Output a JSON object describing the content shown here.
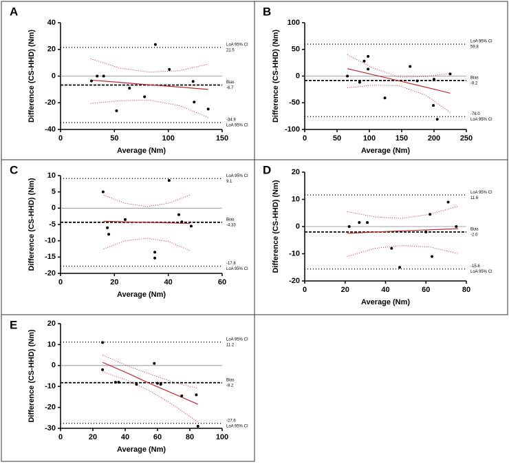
{
  "chart_data": [
    {
      "type": "scatter",
      "panel": "A",
      "ylabel": "Difference (CS-HHD) (Nm)",
      "xlabel": "Average (Nm)",
      "x": [
        28.7,
        34,
        40,
        52,
        64,
        78,
        88,
        101,
        123,
        124,
        137
      ],
      "values": [
        -3.6,
        0,
        0,
        -26,
        -9,
        -15.5,
        23.7,
        5,
        -4,
        -19.5,
        -24.7
      ],
      "xlim": [
        0,
        150
      ],
      "xticks": [
        0,
        50,
        100,
        150
      ],
      "ylim": [
        -40,
        40
      ],
      "yticks": [
        -40,
        -20,
        0,
        20,
        40
      ],
      "fit": {
        "x": [
          28,
          55,
          82,
          110,
          137
        ],
        "y": [
          -3,
          -4.7,
          -6.5,
          -8.2,
          -10
        ],
        "upper": [
          13,
          6,
          3,
          4,
          9
        ],
        "lower": [
          -20.5,
          -18.5,
          -18,
          -22,
          -31
        ]
      },
      "loa_label": "LoA 95% CI",
      "bias_label": "Bias",
      "loa_upper": 21.5,
      "bias": -6.7,
      "loa_lower": -34.9,
      "color": "#000000",
      "fit_color": "#c0262b"
    },
    {
      "type": "scatter",
      "panel": "B",
      "ylabel": "Difference (CS-HHD) (Nm)",
      "xlabel": "Average (Nm)",
      "x": [
        66,
        85,
        92,
        98,
        98,
        124,
        163,
        174,
        200,
        199,
        205,
        225
      ],
      "values": [
        0,
        -11.6,
        28,
        37,
        13,
        -41,
        18,
        -9,
        -6,
        -55,
        -81,
        4
      ],
      "xlim": [
        0,
        250
      ],
      "xticks": [
        0,
        50,
        100,
        150,
        200,
        250
      ],
      "ylim": [
        -100,
        100
      ],
      "yticks": [
        -100,
        -50,
        0,
        50,
        100
      ],
      "fit": {
        "x": [
          66,
          106,
          146,
          186,
          225
        ],
        "y": [
          14,
          2.5,
          -9,
          -20.5,
          -32
        ],
        "upper": [
          40,
          15,
          -2,
          -1,
          5
        ],
        "lower": [
          -22,
          -17,
          -18,
          -35,
          -68
        ]
      },
      "loa_label": "LoA 95% CI",
      "bias_label": "Bias",
      "loa_upper": 59.8,
      "bias": -8.2,
      "loa_lower": {
        "value": -76,
        "label": "-76.0"
      },
      "color": "#000000",
      "fit_color": "#c0262b"
    },
    {
      "type": "scatter",
      "panel": "C",
      "ylabel": "Difference (CS-HHD) (Nm)",
      "xlabel": "Average (Nm)",
      "x": [
        15.8,
        17.4,
        17.9,
        24,
        40.3,
        43.9,
        45,
        48.5,
        35,
        35
      ],
      "values": [
        5,
        -6,
        -8,
        -3.5,
        8.5,
        -2,
        -4.2,
        -5.5,
        -13.5,
        -15.3
      ],
      "xlim": [
        0,
        60
      ],
      "xticks": [
        0,
        20,
        40,
        60
      ],
      "ylim": [
        -20,
        10
      ],
      "yticks": [
        -20,
        -15,
        -10,
        -5,
        0,
        5,
        10
      ],
      "fit": {
        "x": [
          16,
          24,
          32,
          40,
          48
        ],
        "y": [
          -4,
          -4.2,
          -4.35,
          -4.5,
          -4.7
        ],
        "upper": [
          4,
          1.5,
          0.5,
          1.5,
          4
        ],
        "lower": [
          -12.5,
          -10,
          -9.2,
          -10.2,
          -13
        ]
      },
      "loa_label": "LoA 95% CI",
      "bias_label": "Bias",
      "loa_upper": 9.1,
      "bias": -4.33,
      "loa_lower": -17.8,
      "color": "#000000",
      "fit_color": "#c0262b"
    },
    {
      "type": "scatter",
      "panel": "D",
      "ylabel": "Difference (CS-HHD) (Nm)",
      "xlabel": "Average (Nm)",
      "x": [
        22,
        27,
        31,
        43,
        47,
        60,
        62,
        63,
        71,
        75
      ],
      "values": [
        0,
        1.5,
        1.5,
        -8,
        -15,
        -2,
        4.5,
        -11,
        9,
        0
      ],
      "xlim": [
        0,
        80
      ],
      "xticks": [
        0,
        20,
        40,
        60,
        80
      ],
      "ylim": [
        -20,
        20
      ],
      "yticks": [
        -20,
        -10,
        0,
        10,
        20
      ],
      "fit": {
        "x": [
          21,
          35,
          48,
          62,
          76
        ],
        "y": [
          -2.5,
          -2,
          -1.6,
          -1.2,
          -0.8
        ],
        "upper": [
          5.5,
          3.5,
          3,
          4.5,
          7.5
        ],
        "lower": [
          -11,
          -8,
          -7,
          -7.5,
          -10
        ]
      },
      "loa_label": "LoA 95% CI",
      "bias_label": "Bias",
      "loa_upper": 11.6,
      "bias": {
        "value": -2,
        "label": "-2.0"
      },
      "loa_lower": -15.6,
      "color": "#000000",
      "fit_color": "#c0262b"
    },
    {
      "type": "scatter",
      "panel": "E",
      "ylabel": "Difference (CS-HHD) (Nm)",
      "xlabel": "Average (Nm)",
      "x": [
        26,
        26,
        34,
        36,
        47,
        58,
        60,
        62,
        75,
        84,
        85
      ],
      "values": [
        11,
        -2,
        -8,
        -8,
        -9,
        1,
        -8.5,
        -9,
        -14.5,
        -14,
        -29
      ],
      "xlim": [
        0,
        100
      ],
      "xticks": [
        0,
        20,
        40,
        60,
        80,
        100
      ],
      "ylim": [
        -30,
        20
      ],
      "yticks": [
        -30,
        -20,
        -10,
        0,
        10,
        20
      ],
      "fit": {
        "x": [
          26,
          41,
          55,
          70,
          85
        ],
        "y": [
          1.5,
          -3.5,
          -8.5,
          -13.5,
          -18.5
        ],
        "upper": [
          5,
          0,
          -4,
          -8,
          -11
        ],
        "lower": [
          -3,
          -7,
          -12,
          -19,
          -27
        ]
      },
      "loa_label": "LoA 95% CI",
      "bias_label": "Bias",
      "loa_upper": 11.2,
      "bias": -8.2,
      "loa_lower": -27.6,
      "color": "#000000",
      "fit_color": "#c0262b"
    }
  ]
}
